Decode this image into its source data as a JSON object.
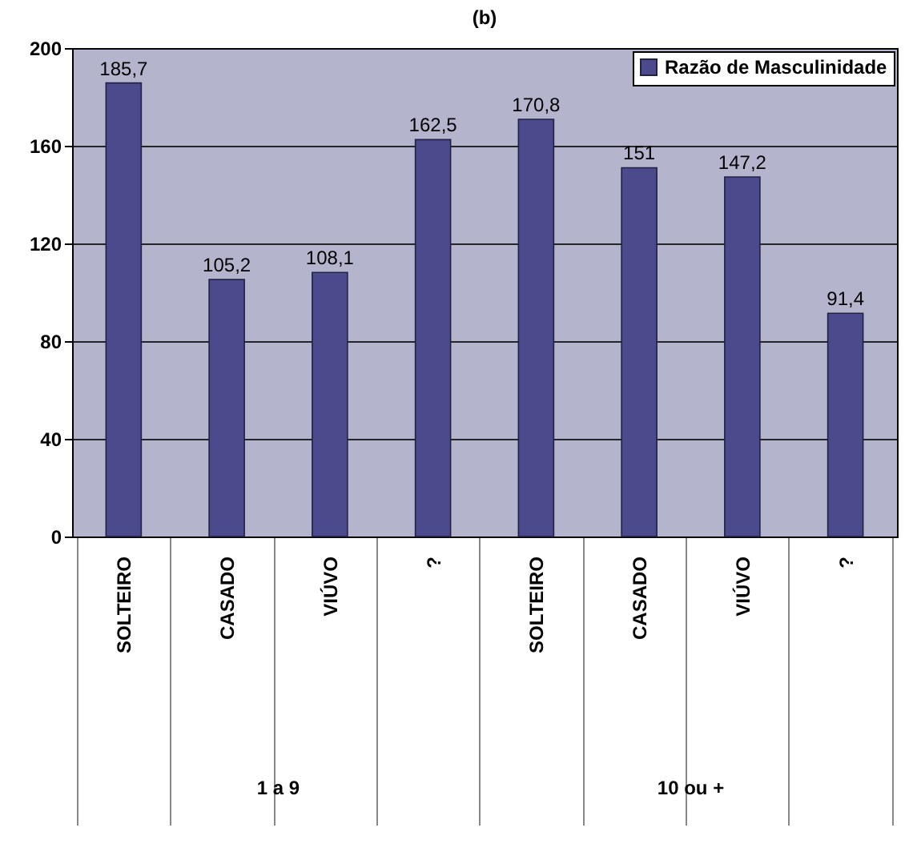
{
  "chart_data": {
    "type": "bar",
    "title": "(b)",
    "categories": [
      "SOLTEIRO",
      "CASADO",
      "VIÚVO",
      "?",
      "SOLTEIRO",
      "CASADO",
      "VIÚVO",
      "?"
    ],
    "series": [
      {
        "name": "Razão de Masculinidade",
        "color": "#4a4a8c",
        "values": [
          185.7,
          105.2,
          108.1,
          162.5,
          170.8,
          151,
          147.2,
          91.4
        ],
        "value_labels": [
          "185,7",
          "105,2",
          "108,1",
          "162,5",
          "170,8",
          "151",
          "147,2",
          "91,4"
        ]
      }
    ],
    "ylim": [
      0,
      200
    ],
    "yticks": [
      0,
      40,
      80,
      120,
      160,
      200
    ],
    "grid": "y",
    "legend": "top right",
    "annotations": [
      "1 a 9",
      "10 ou +"
    ]
  }
}
